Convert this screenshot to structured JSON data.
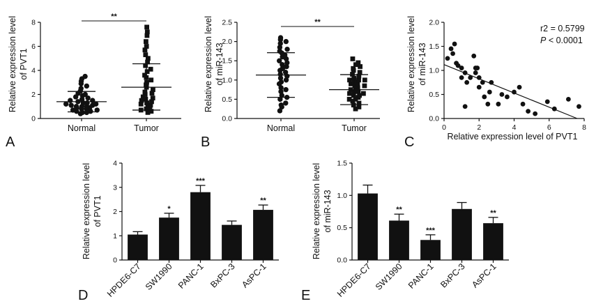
{
  "panel_labels": [
    "A",
    "B",
    "C",
    "D",
    "E"
  ],
  "chart_data": [
    {
      "id": "A",
      "type": "scatter",
      "ylabel": [
        "Relative expression level",
        "of PVT1"
      ],
      "categories": [
        "Normal",
        "Tumor"
      ],
      "ylim": [
        0,
        8
      ],
      "yticks": [
        "0",
        "2",
        "4",
        "6",
        "8"
      ],
      "significance": "**",
      "groups": [
        {
          "name": "Normal",
          "mean": 1.4,
          "sd_low": 0.55,
          "sd_high": 2.25,
          "values": [
            0.4,
            0.5,
            0.5,
            0.6,
            0.6,
            0.7,
            0.7,
            0.8,
            0.8,
            0.9,
            0.9,
            1.0,
            1.0,
            1.0,
            1.1,
            1.1,
            1.2,
            1.2,
            1.3,
            1.3,
            1.4,
            1.5,
            1.5,
            1.6,
            1.7,
            1.8,
            1.9,
            2.0,
            2.1,
            2.3,
            2.5,
            2.7,
            2.9,
            3.1,
            3.3,
            3.5
          ]
        },
        {
          "name": "Tumor",
          "mean": 2.6,
          "sd_low": 0.7,
          "sd_high": 4.55,
          "values": [
            0.5,
            0.6,
            0.7,
            0.8,
            0.9,
            1.0,
            1.1,
            1.2,
            1.3,
            1.4,
            1.5,
            1.6,
            1.7,
            1.8,
            2.0,
            2.1,
            2.2,
            2.4,
            2.6,
            2.8,
            3.0,
            3.2,
            3.4,
            3.6,
            3.9,
            4.1,
            4.4,
            4.7,
            5.0,
            5.3,
            5.7,
            6.0,
            6.4,
            6.9,
            7.2,
            7.6
          ]
        }
      ]
    },
    {
      "id": "B",
      "type": "scatter",
      "ylabel": [
        "Relative expression level",
        "of miR-143"
      ],
      "categories": [
        "Normal",
        "Tumor"
      ],
      "ylim": [
        0,
        2.5
      ],
      "yticks": [
        "0.0",
        "0.5",
        "1.0",
        "1.5",
        "2.0",
        "2.5"
      ],
      "significance": "**",
      "groups": [
        {
          "name": "Normal",
          "mean": 1.13,
          "sd_low": 0.55,
          "sd_high": 1.71,
          "values": [
            0.2,
            0.3,
            0.35,
            0.4,
            0.5,
            0.55,
            0.6,
            0.7,
            0.75,
            0.8,
            0.9,
            0.95,
            1.0,
            1.05,
            1.1,
            1.15,
            1.2,
            1.25,
            1.3,
            1.35,
            1.4,
            1.45,
            1.5,
            1.55,
            1.6,
            1.65,
            1.7,
            1.75,
            1.8,
            1.85,
            1.95,
            2.0,
            2.05,
            2.1
          ]
        },
        {
          "name": "Tumor",
          "mean": 0.75,
          "sd_low": 0.36,
          "sd_high": 1.14,
          "values": [
            0.25,
            0.3,
            0.35,
            0.4,
            0.45,
            0.5,
            0.55,
            0.6,
            0.6,
            0.65,
            0.7,
            0.7,
            0.75,
            0.8,
            0.8,
            0.85,
            0.9,
            0.9,
            0.95,
            1.0,
            1.0,
            1.05,
            1.1,
            1.15,
            1.2,
            1.25,
            1.3,
            1.35,
            1.4,
            1.45,
            1.55,
            0.5,
            0.65,
            0.85,
            1.0
          ]
        }
      ]
    },
    {
      "id": "C",
      "type": "scatter",
      "xlabel": "Relative expression level of PVT1",
      "ylabel": [
        "Relative expression level",
        "of miR-143"
      ],
      "xlim": [
        0,
        8
      ],
      "ylim": [
        0,
        2.0
      ],
      "xticks": [
        "0",
        "2",
        "4",
        "6",
        "8"
      ],
      "yticks": [
        "0.0",
        "0.5",
        "1.0",
        "1.5",
        "2.0"
      ],
      "annotation_r2": "r2 = 0.5799",
      "annotation_p_italic": "P",
      "annotation_p_rest": " < 0.0001",
      "regression": {
        "x": [
          0,
          7.6
        ],
        "y": [
          1.12,
          0.0
        ]
      },
      "points": [
        [
          0.2,
          1.25
        ],
        [
          0.4,
          1.45
        ],
        [
          0.6,
          1.55
        ],
        [
          0.5,
          1.35
        ],
        [
          0.7,
          1.15
        ],
        [
          0.8,
          1.1
        ],
        [
          1.0,
          1.05
        ],
        [
          1.0,
          0.85
        ],
        [
          1.2,
          0.95
        ],
        [
          1.3,
          0.75
        ],
        [
          1.2,
          0.25
        ],
        [
          1.5,
          0.85
        ],
        [
          1.7,
          1.3
        ],
        [
          1.8,
          1.05
        ],
        [
          1.9,
          1.05
        ],
        [
          1.8,
          0.95
        ],
        [
          2.0,
          0.65
        ],
        [
          2.0,
          0.85
        ],
        [
          2.2,
          0.75
        ],
        [
          2.3,
          0.45
        ],
        [
          2.5,
          0.3
        ],
        [
          2.6,
          0.55
        ],
        [
          2.7,
          0.75
        ],
        [
          3.1,
          0.3
        ],
        [
          3.3,
          0.5
        ],
        [
          3.6,
          0.45
        ],
        [
          4.0,
          0.55
        ],
        [
          4.3,
          0.65
        ],
        [
          4.5,
          0.3
        ],
        [
          4.8,
          0.15
        ],
        [
          5.2,
          0.1
        ],
        [
          5.9,
          0.35
        ],
        [
          6.3,
          0.2
        ],
        [
          7.1,
          0.4
        ],
        [
          7.7,
          0.25
        ]
      ]
    },
    {
      "id": "D",
      "type": "bar",
      "ylabel": [
        "Relative expression level",
        "of PVT1"
      ],
      "categories": [
        "HPDE6-C7",
        "SW1990",
        "PANC-1",
        "BxPC-3",
        "AsPC-1"
      ],
      "values": [
        1.05,
        1.75,
        2.8,
        1.45,
        2.07
      ],
      "errors": [
        0.12,
        0.18,
        0.28,
        0.16,
        0.2
      ],
      "significance": [
        "",
        "*",
        "***",
        "",
        "**"
      ],
      "ylim": [
        0,
        4
      ],
      "yticks": [
        "0",
        "1",
        "2",
        "3",
        "4"
      ]
    },
    {
      "id": "E",
      "type": "bar",
      "ylabel": [
        "Relative expression level",
        "of miR-143"
      ],
      "categories": [
        "HPDE6-C7",
        "SW1990",
        "PANC-1",
        "BxPC-3",
        "AsPC-1"
      ],
      "values": [
        1.03,
        0.61,
        0.31,
        0.79,
        0.57
      ],
      "errors": [
        0.13,
        0.1,
        0.08,
        0.1,
        0.09
      ],
      "significance": [
        "",
        "**",
        "***",
        "",
        "**"
      ],
      "ylim": [
        0,
        1.5
      ],
      "yticks": [
        "0.0",
        "0.5",
        "1.0",
        "1.5"
      ]
    }
  ]
}
